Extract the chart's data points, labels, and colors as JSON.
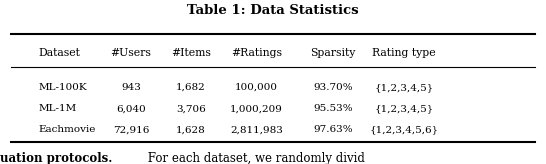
{
  "title": "Table 1: Data Statistics",
  "columns": [
    "Dataset",
    "#Users",
    "#Items",
    "#Ratings",
    "Sparsity",
    "Rating type"
  ],
  "rows": [
    [
      "ML-100K",
      "943",
      "1,682",
      "100,000",
      "93.70%",
      "{1,2,3,4,5}"
    ],
    [
      "ML-1M",
      "6,040",
      "3,706",
      "1,000,209",
      "95.53%",
      "{1,2,3,4,5}"
    ],
    [
      "Eachmovie",
      "72,916",
      "1,628",
      "2,811,983",
      "97.63%",
      "{1,2,3,4,5,6}"
    ]
  ],
  "footer_bold": "uation protocols.",
  "footer_regular": " For each dataset, we randomly divid",
  "background_color": "#ffffff",
  "figsize": [
    5.46,
    1.64
  ],
  "dpi": 100
}
